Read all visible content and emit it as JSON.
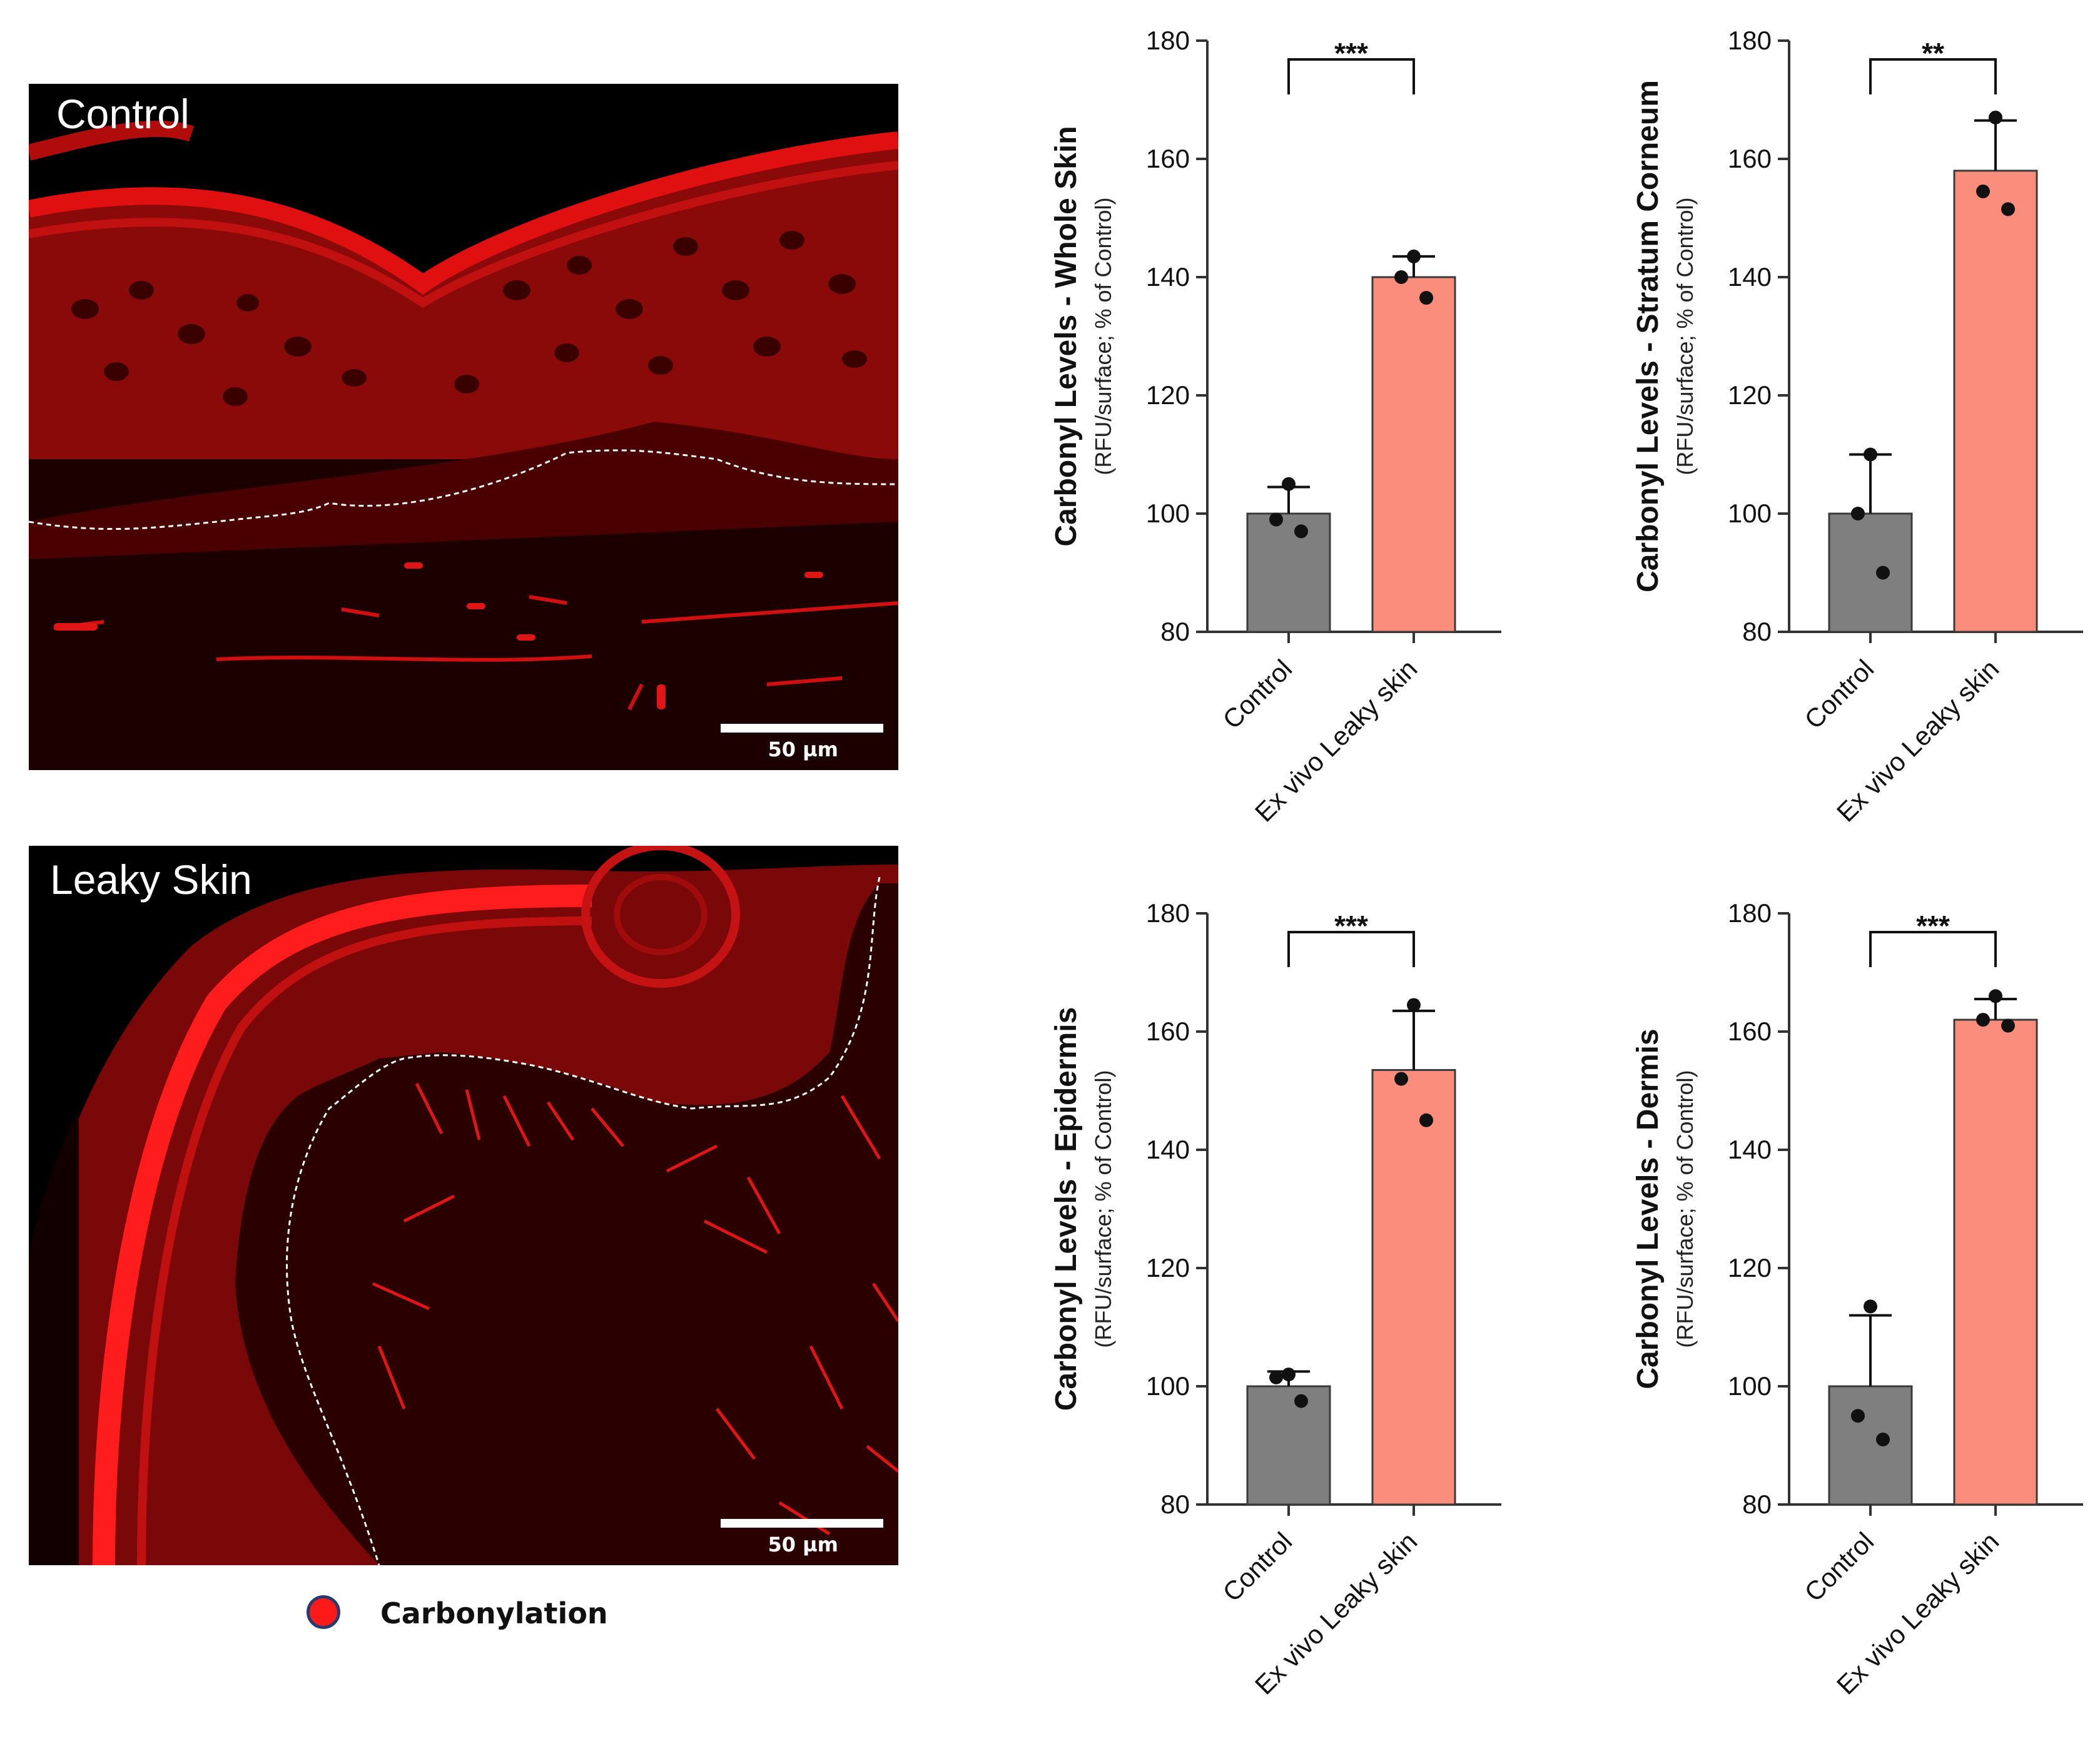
{
  "micrographs": [
    {
      "label": "Control",
      "scale_bar": "50 µm"
    },
    {
      "label": "Leaky Skin",
      "scale_bar": "50 µm"
    }
  ],
  "legend": {
    "label": "Carbonylation",
    "color": "#ff1a1a"
  },
  "colors": {
    "control_bar": "#7f7f7f",
    "leaky_bar": "#fa8d7b",
    "axis": "#333333"
  },
  "chart_data": [
    {
      "type": "bar",
      "ylabel": "Carbonyl Levels - Whole Skin",
      "ylabel_sub": "(RFU/surface; % of Control)",
      "categories": [
        "Control",
        "Ex vivo Leaky skin"
      ],
      "values": [
        100,
        140
      ],
      "error": [
        4.5,
        3.5
      ],
      "points": [
        [
          105,
          99,
          97
        ],
        [
          143.5,
          140,
          136.5
        ]
      ],
      "ylim": [
        80,
        180
      ],
      "yticks": [
        80,
        100,
        120,
        140,
        160,
        180
      ],
      "significance": "***"
    },
    {
      "type": "bar",
      "ylabel": "Carbonyl Levels - Stratum Corneum",
      "ylabel_sub": "(RFU/surface; % of Control)",
      "categories": [
        "Control",
        "Ex vivo Leaky skin"
      ],
      "values": [
        100,
        158
      ],
      "error": [
        10,
        8.5
      ],
      "points": [
        [
          110,
          100,
          90
        ],
        [
          167,
          154.5,
          151.5
        ]
      ],
      "ylim": [
        80,
        180
      ],
      "yticks": [
        80,
        100,
        120,
        140,
        160,
        180
      ],
      "significance": "**"
    },
    {
      "type": "bar",
      "ylabel": "Carbonyl Levels - Epidermis",
      "ylabel_sub": "(RFU/surface; % of Control)",
      "categories": [
        "Control",
        "Ex vivo Leaky skin"
      ],
      "values": [
        100,
        153.5
      ],
      "error": [
        2.5,
        10
      ],
      "points": [
        [
          102,
          101.5,
          97.5
        ],
        [
          164.5,
          152,
          145
        ]
      ],
      "ylim": [
        80,
        180
      ],
      "yticks": [
        80,
        100,
        120,
        140,
        160,
        180
      ],
      "significance": "***"
    },
    {
      "type": "bar",
      "ylabel": "Carbonyl Levels - Dermis",
      "ylabel_sub": "(RFU/surface; % of Control)",
      "categories": [
        "Control",
        "Ex vivo Leaky skin"
      ],
      "values": [
        100,
        162
      ],
      "error": [
        12,
        3.5
      ],
      "points": [
        [
          113.5,
          95,
          91
        ],
        [
          166,
          162,
          161
        ]
      ],
      "ylim": [
        80,
        180
      ],
      "yticks": [
        80,
        100,
        120,
        140,
        160,
        180
      ],
      "significance": "***"
    }
  ]
}
